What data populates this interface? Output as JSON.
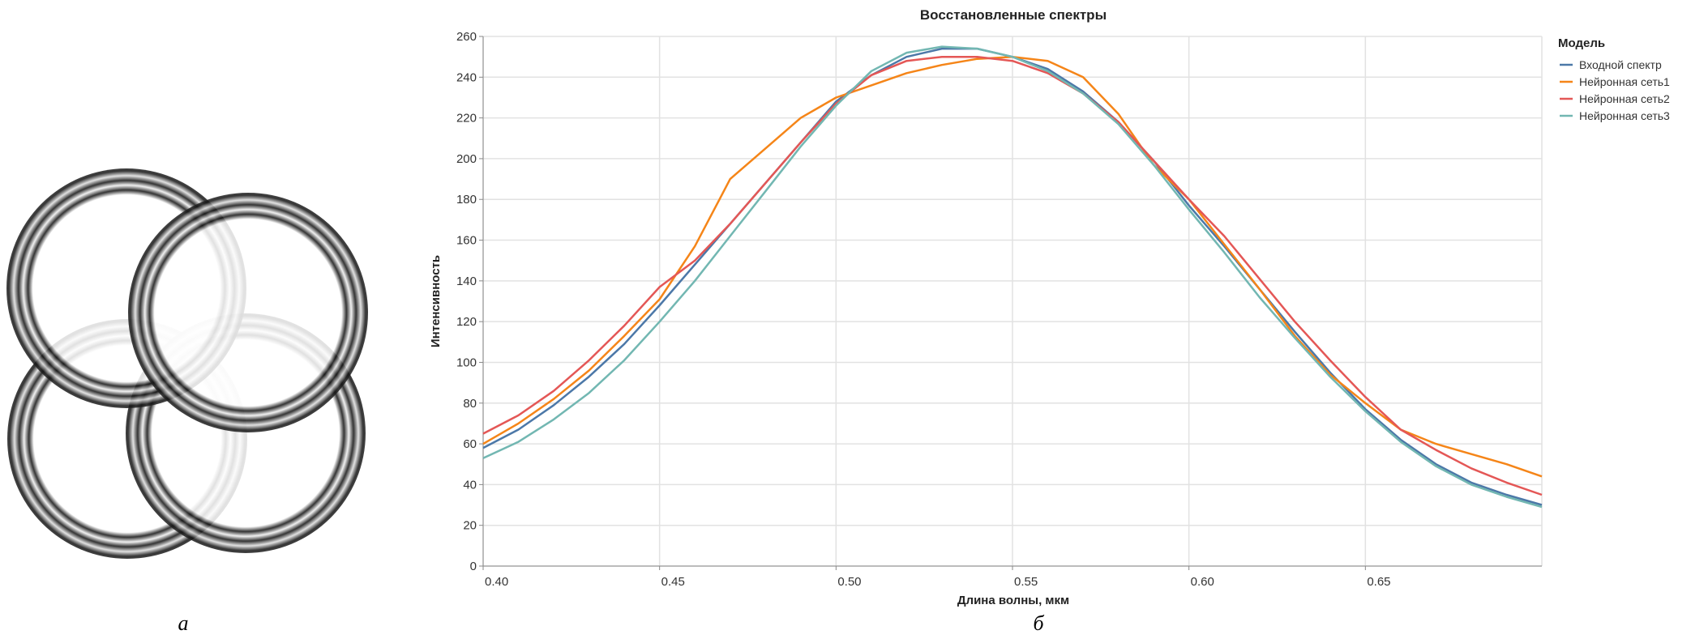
{
  "figure_labels": {
    "left": "а",
    "right": "б"
  },
  "colors": {
    "Входной спектр": "#4c78a8",
    "Нейронная сеть1": "#f58518",
    "Нейронная сеть2": "#e45756",
    "Нейронная сеть3": "#72b7b2"
  },
  "chart_data": {
    "type": "line",
    "title": "Восстановленные спектры",
    "xlabel": "Длина волны, мкм",
    "ylabel": "Интенсивность",
    "xlim": [
      0.4,
      0.7
    ],
    "ylim": [
      0,
      260
    ],
    "xticks": [
      "0.40",
      "0.45",
      "0.50",
      "0.55",
      "0.60",
      "0.65"
    ],
    "yticks": [
      "0",
      "20",
      "40",
      "60",
      "80",
      "100",
      "120",
      "140",
      "160",
      "180",
      "200",
      "220",
      "240",
      "260"
    ],
    "grid": true,
    "legend": {
      "title": "Модель",
      "placement": "right"
    },
    "x": [
      0.4,
      0.41,
      0.42,
      0.43,
      0.44,
      0.45,
      0.46,
      0.47,
      0.48,
      0.49,
      0.5,
      0.51,
      0.52,
      0.53,
      0.54,
      0.55,
      0.56,
      0.57,
      0.58,
      0.59,
      0.6,
      0.61,
      0.62,
      0.63,
      0.64,
      0.65,
      0.66,
      0.67,
      0.68,
      0.69,
      0.7
    ],
    "series": [
      {
        "name": "Входной спектр",
        "values": [
          58,
          67,
          79,
          93,
          109,
          128,
          148,
          168,
          188,
          208,
          228,
          241,
          250,
          254,
          254,
          250,
          244,
          233,
          218,
          199,
          177,
          157,
          136,
          115,
          95,
          77,
          62,
          50,
          41,
          35,
          30
        ]
      },
      {
        "name": "Нейронная сеть1",
        "values": [
          60,
          70,
          82,
          96,
          113,
          131,
          157,
          190,
          205,
          220,
          230,
          236,
          242,
          246,
          249,
          250,
          248,
          240,
          222,
          197,
          180,
          158,
          136,
          113,
          94,
          80,
          67,
          60,
          55,
          50,
          44
        ]
      },
      {
        "name": "Нейронная сеть2",
        "values": [
          65,
          74,
          86,
          101,
          118,
          137,
          150,
          168,
          188,
          208,
          227,
          241,
          248,
          250,
          250,
          248,
          242,
          232,
          218,
          199,
          180,
          162,
          141,
          120,
          101,
          83,
          67,
          57,
          48,
          41,
          35
        ]
      },
      {
        "name": "Нейронная сеть3",
        "values": [
          53,
          61,
          72,
          85,
          101,
          120,
          140,
          162,
          184,
          206,
          226,
          243,
          252,
          255,
          254,
          250,
          243,
          232,
          217,
          197,
          175,
          154,
          132,
          112,
          93,
          76,
          61,
          49,
          40,
          34,
          29
        ]
      }
    ]
  }
}
